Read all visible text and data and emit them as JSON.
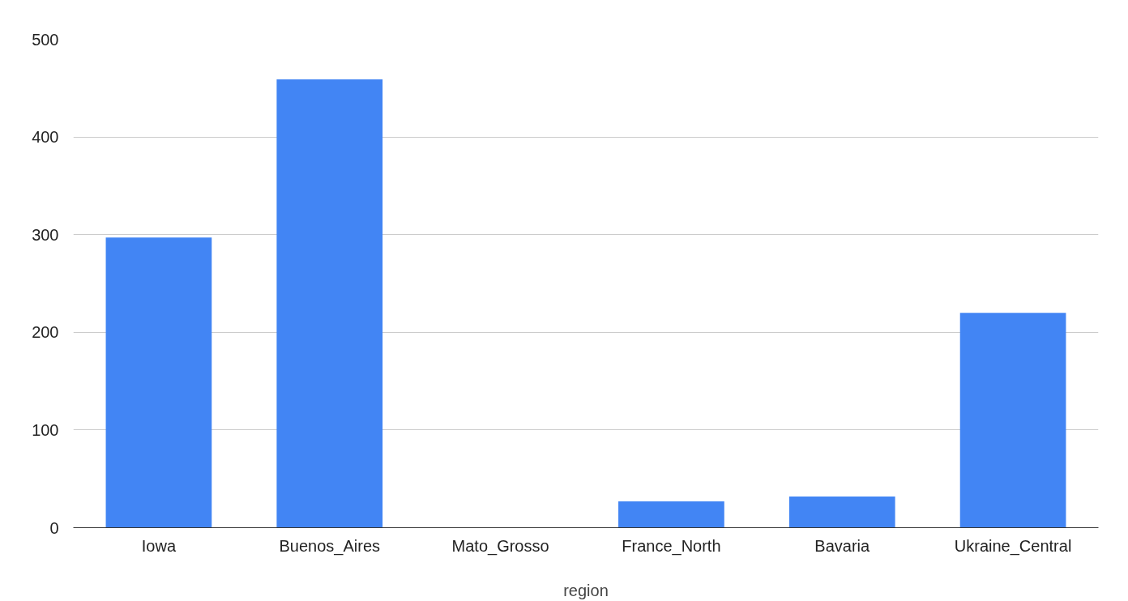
{
  "chart_data": {
    "type": "bar",
    "xlabel": "region",
    "categories": [
      "Iowa",
      "Buenos_Aires",
      "Mato_Grosso",
      "France_North",
      "Bavaria",
      "Ukraine_Central"
    ],
    "values": [
      297,
      459,
      0,
      27,
      32,
      220
    ],
    "color": "#4285f4",
    "ylim": [
      0,
      500
    ],
    "yticks": [
      0,
      100,
      200,
      300,
      400,
      500
    ],
    "grid": "y"
  }
}
